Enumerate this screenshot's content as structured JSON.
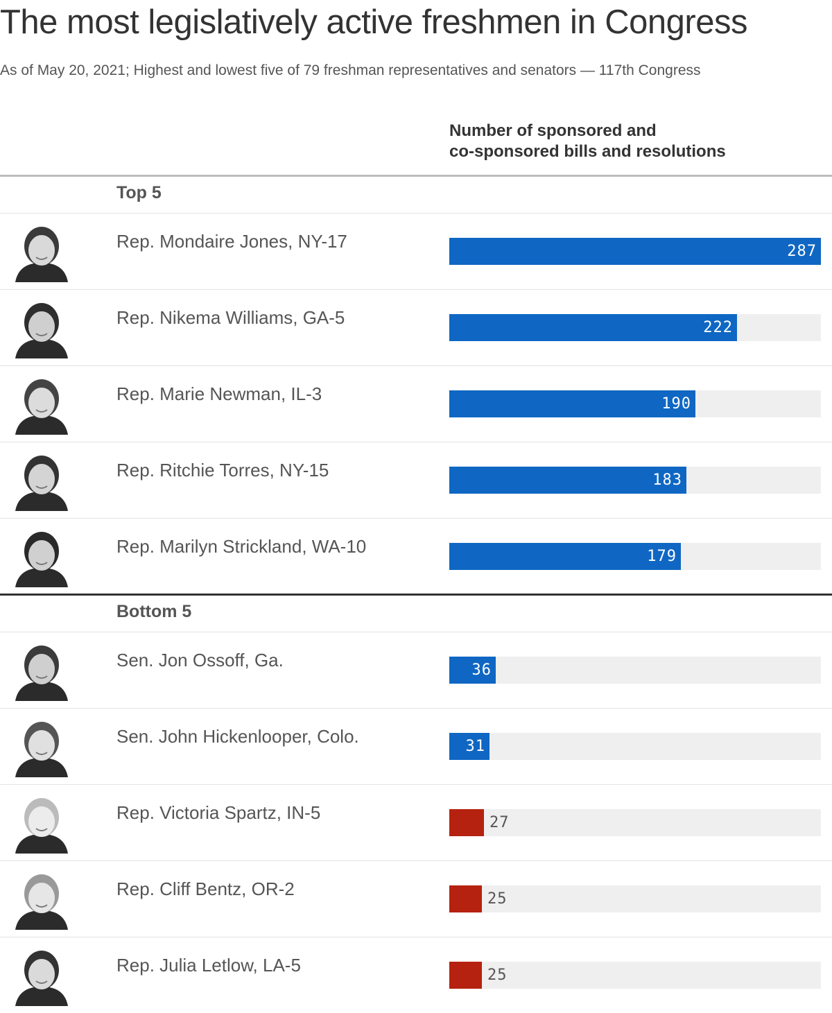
{
  "title": "The most legislatively active freshmen in Congress",
  "subtitle": "As of May 20, 2021; Highest and lowest five of 79 freshman representatives and senators — 117th Congress",
  "column_header": [
    "Number of sponsored and",
    "co-sponsored bills and resolutions"
  ],
  "colors": {
    "top_bar": "#0f67c3",
    "low_bar": "#b5220f",
    "track": "#efefef"
  },
  "chart_data": {
    "type": "bar",
    "orientation": "horizontal",
    "title": "The most legislatively active freshmen in Congress",
    "value_label": "Number of sponsored and co-sponsored bills and resolutions",
    "xlim": [
      0,
      287
    ],
    "groups": [
      {
        "label": "Top 5",
        "rows": [
          {
            "name": "Rep. Mondaire Jones, NY-17",
            "value": 287,
            "color": "#0f67c3",
            "photo": "avatar-icon"
          },
          {
            "name": "Rep. Nikema Williams, GA-5",
            "value": 222,
            "color": "#0f67c3",
            "photo": "avatar-icon"
          },
          {
            "name": "Rep. Marie Newman, IL-3",
            "value": 190,
            "color": "#0f67c3",
            "photo": "avatar-icon"
          },
          {
            "name": "Rep. Ritchie Torres, NY-15",
            "value": 183,
            "color": "#0f67c3",
            "photo": "avatar-icon"
          },
          {
            "name": "Rep. Marilyn Strickland, WA-10",
            "value": 179,
            "color": "#0f67c3",
            "photo": "avatar-icon"
          }
        ]
      },
      {
        "label": "Bottom 5",
        "rows": [
          {
            "name": "Sen. Jon Ossoff, Ga.",
            "value": 36,
            "color": "#0f67c3",
            "photo": "avatar-icon"
          },
          {
            "name": "Sen. John Hickenlooper, Colo.",
            "value": 31,
            "color": "#0f67c3",
            "photo": "avatar-icon"
          },
          {
            "name": "Rep. Victoria Spartz, IN-5",
            "value": 27,
            "color": "#b5220f",
            "photo": "avatar-icon"
          },
          {
            "name": "Rep. Cliff Bentz, OR-2",
            "value": 25,
            "color": "#b5220f",
            "photo": "avatar-icon"
          },
          {
            "name": "Rep. Julia Letlow, LA-5",
            "value": 25,
            "color": "#b5220f",
            "photo": "avatar-icon"
          }
        ]
      }
    ]
  }
}
